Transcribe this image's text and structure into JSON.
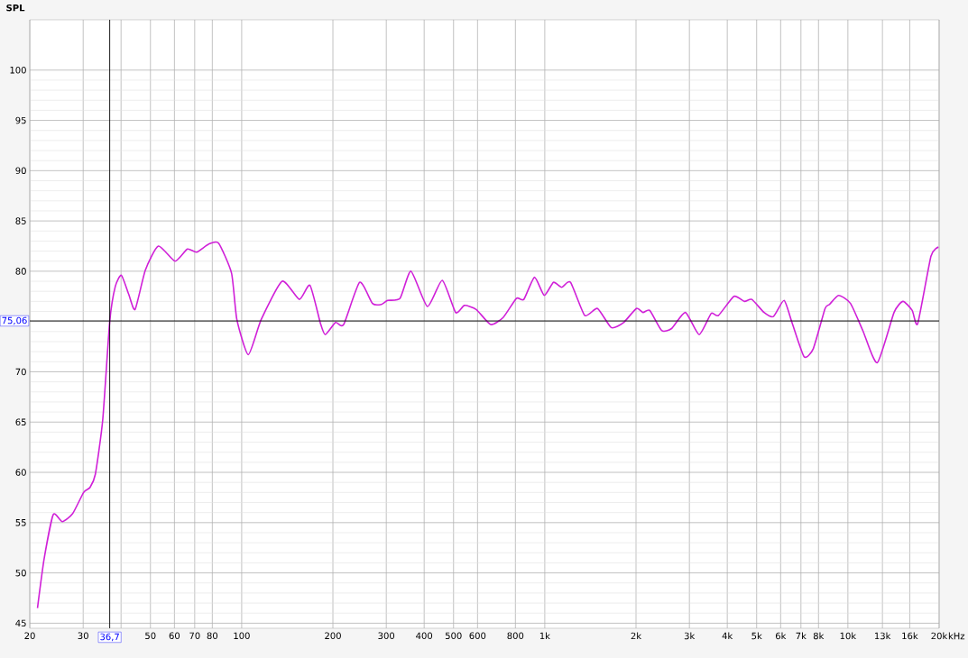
{
  "chart_data": {
    "type": "line",
    "ylabel": "SPL",
    "log": "x",
    "grid": true,
    "xlim": [
      20,
      20000
    ],
    "ylim": [
      44.5,
      105
    ],
    "xticks": [
      20,
      30,
      {
        "value": 40,
        "label": null
      },
      50,
      60,
      70,
      80,
      100,
      200,
      300,
      400,
      500,
      600,
      800,
      {
        "value": 1000,
        "label": "1k"
      },
      {
        "value": 2000,
        "label": "2k"
      },
      {
        "value": 3000,
        "label": "3k"
      },
      {
        "value": 4000,
        "label": "4k"
      },
      {
        "value": 5000,
        "label": "5k"
      },
      {
        "value": 6000,
        "label": "6k"
      },
      {
        "value": 7000,
        "label": "7k"
      },
      {
        "value": 8000,
        "label": "8k"
      },
      {
        "value": 10000,
        "label": "10k"
      },
      {
        "value": 13000,
        "label": "13k"
      },
      {
        "value": 16000,
        "label": "16k"
      },
      {
        "value": 20000,
        "label": "20k"
      }
    ],
    "xlabel": "kHz",
    "yticks": [
      45,
      50,
      55,
      60,
      65,
      70,
      {
        "value": 75,
        "label": null
      },
      80,
      85,
      90,
      95,
      100
    ],
    "ref_lines": [
      {
        "axis": "x",
        "value": 36.7,
        "label": "36,7",
        "color": "#000000"
      },
      {
        "axis": "y",
        "value": 75.06,
        "label": "75,06",
        "color": "#000000"
      }
    ],
    "x": [
      21.2,
      22.3,
      23.9,
      25.6,
      27.7,
      30.1,
      31.6,
      32.9,
      34.8,
      36.7,
      38.3,
      40.1,
      42.4,
      44.5,
      48.1,
      53.1,
      60.3,
      66.2,
      71.0,
      77.9,
      83.9,
      92.6,
      96.4,
      105.2,
      116,
      136,
      155,
      168,
      182,
      188.7,
      204,
      217,
      245,
      270,
      289,
      303,
      333,
      362,
      410,
      459,
      508,
      543,
      594,
      663,
      729,
      806,
      853,
      925,
      996,
      1068,
      1136,
      1216,
      1355,
      1492,
      1657,
      1820,
      2006,
      2110,
      2220,
      2430,
      2620,
      2910,
      3230,
      3540,
      3740,
      4210,
      4560,
      4820,
      5290,
      5680,
      6160,
      6540,
      7170,
      7690,
      8410,
      8700,
      9320,
      10200,
      11200,
      12500,
      14200,
      15200,
      16300,
      17000,
      18800,
      19900
    ],
    "series": [
      {
        "color": "#d020d8",
        "values": [
          46.5,
          51.4,
          55.8,
          55.1,
          55.9,
          58.0,
          58.5,
          59.8,
          65.2,
          75.0,
          78.5,
          79.6,
          77.7,
          76.2,
          80.1,
          82.5,
          81.0,
          82.2,
          81.9,
          82.7,
          82.8,
          79.8,
          75.2,
          71.7,
          75.2,
          79.0,
          77.2,
          78.6,
          74.8,
          73.7,
          74.9,
          74.7,
          78.9,
          76.8,
          76.7,
          77.1,
          77.3,
          80.0,
          76.5,
          79.1,
          75.9,
          76.6,
          76.2,
          74.7,
          75.4,
          77.3,
          77.2,
          79.4,
          77.6,
          78.9,
          78.4,
          78.9,
          75.6,
          76.3,
          74.4,
          74.9,
          76.3,
          75.9,
          76.1,
          74.1,
          74.3,
          75.9,
          73.7,
          75.8,
          75.6,
          77.5,
          77.0,
          77.2,
          75.9,
          75.5,
          77.1,
          74.9,
          71.5,
          72.3,
          76.3,
          76.7,
          77.6,
          76.8,
          74.1,
          70.9,
          75.9,
          77.0,
          76.1,
          74.8,
          81.5,
          82.4
        ]
      }
    ]
  }
}
